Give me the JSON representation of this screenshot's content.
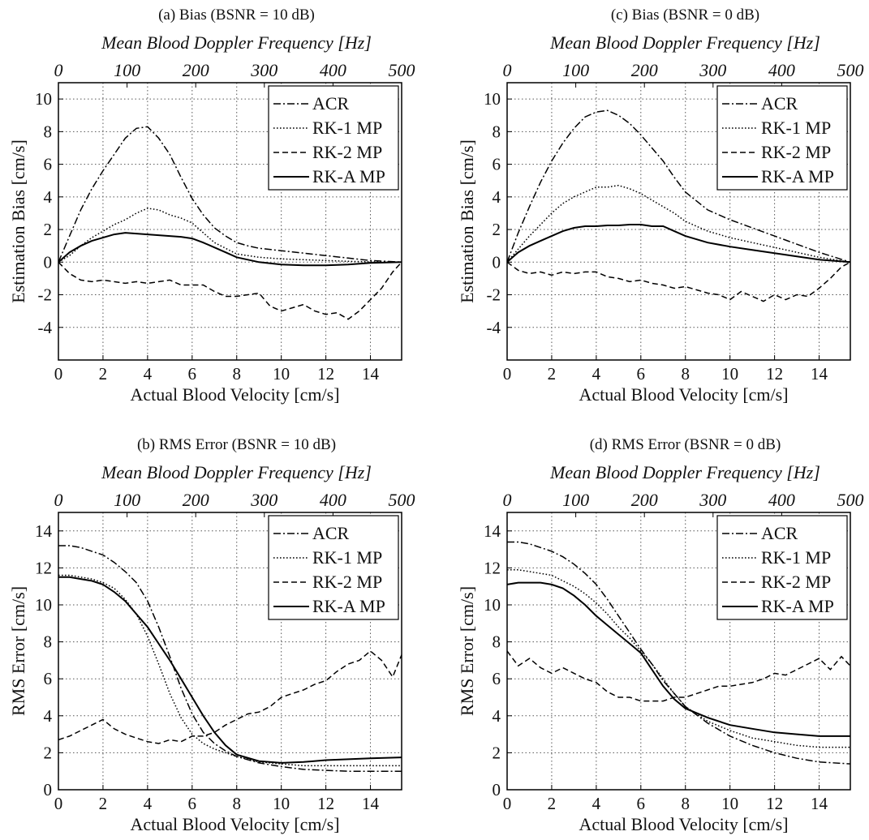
{
  "chart_data": [
    {
      "type": "line",
      "title": "(a) Bias (BSNR = 10 dB)",
      "xlabel": "Actual Blood Velocity [cm/s]",
      "ylabel": "Estimation Bias [cm/s]",
      "x2label": "Mean Blood Doppler Frequency [Hz]",
      "xlim": [
        0,
        15.4
      ],
      "ylim": [
        -6,
        11
      ],
      "x2lim": [
        0,
        500
      ],
      "xticks": [
        0,
        2,
        4,
        6,
        8,
        10,
        12,
        14
      ],
      "yticks": [
        -4,
        -2,
        0,
        2,
        4,
        6,
        8,
        10
      ],
      "x2ticks": [
        0,
        100,
        200,
        300,
        400,
        500
      ],
      "grid": true,
      "legend_position": "top-right",
      "series": [
        {
          "name": "ACR",
          "style": "dashdot",
          "x": [
            0,
            0.5,
            1,
            1.5,
            2,
            2.5,
            3,
            3.5,
            4,
            4.5,
            5,
            5.5,
            6,
            6.5,
            7,
            7.5,
            8,
            8.5,
            9,
            10,
            11,
            12,
            13,
            14,
            15.4
          ],
          "y": [
            0,
            1.6,
            3.2,
            4.5,
            5.6,
            6.6,
            7.6,
            8.2,
            8.3,
            7.6,
            6.6,
            5.2,
            3.9,
            2.9,
            2.1,
            1.6,
            1.2,
            1.0,
            0.85,
            0.7,
            0.55,
            0.4,
            0.25,
            0.1,
            0
          ]
        },
        {
          "name": "RK-1 MP",
          "style": "dotted",
          "x": [
            0,
            0.5,
            1,
            1.5,
            2,
            2.5,
            3,
            3.5,
            4,
            4.5,
            5,
            5.5,
            6,
            6.5,
            7,
            8,
            9,
            10,
            11,
            12,
            13,
            14,
            15.4
          ],
          "y": [
            0,
            0.4,
            1.0,
            1.5,
            1.9,
            2.3,
            2.6,
            3.0,
            3.3,
            3.2,
            2.9,
            2.7,
            2.4,
            1.8,
            1.2,
            0.5,
            0.3,
            0.2,
            0.15,
            0.1,
            0.05,
            0.02,
            0
          ]
        },
        {
          "name": "RK-2 MP",
          "style": "dashed",
          "x": [
            0,
            0.5,
            1,
            1.5,
            2,
            2.5,
            3,
            3.5,
            4,
            4.5,
            5,
            5.5,
            6,
            6.5,
            7,
            7.5,
            8,
            8.5,
            9,
            9.5,
            10,
            10.5,
            11,
            11.5,
            12,
            12.5,
            13,
            13.5,
            14,
            14.5,
            15,
            15.4
          ],
          "y": [
            0,
            -0.7,
            -1.1,
            -1.2,
            -1.1,
            -1.2,
            -1.3,
            -1.2,
            -1.3,
            -1.2,
            -1.1,
            -1.4,
            -1.4,
            -1.4,
            -1.8,
            -2.1,
            -2.1,
            -2.0,
            -1.9,
            -2.7,
            -3.0,
            -2.8,
            -2.6,
            -3.0,
            -3.2,
            -3.1,
            -3.5,
            -3.0,
            -2.3,
            -1.6,
            -0.6,
            0
          ]
        },
        {
          "name": "RK-A MP",
          "style": "solid",
          "x": [
            0,
            0.5,
            1,
            1.5,
            2,
            2.5,
            3,
            3.5,
            4,
            4.5,
            5,
            5.5,
            6,
            6.5,
            7,
            7.5,
            8,
            9,
            10,
            11,
            12,
            13,
            14,
            15.4
          ],
          "y": [
            0,
            0.6,
            1.0,
            1.3,
            1.5,
            1.7,
            1.8,
            1.75,
            1.7,
            1.65,
            1.6,
            1.55,
            1.45,
            1.2,
            0.9,
            0.6,
            0.3,
            0.0,
            -0.15,
            -0.2,
            -0.2,
            -0.15,
            -0.05,
            0
          ]
        }
      ]
    },
    {
      "type": "line",
      "title": "(c) Bias (BSNR = 0 dB)",
      "xlabel": "Actual Blood Velocity [cm/s]",
      "ylabel": "Estimation Bias [cm/s]",
      "x2label": "Mean Blood Doppler Frequency [Hz]",
      "xlim": [
        0,
        15.4
      ],
      "ylim": [
        -6,
        11
      ],
      "x2lim": [
        0,
        500
      ],
      "xticks": [
        0,
        2,
        4,
        6,
        8,
        10,
        12,
        14
      ],
      "yticks": [
        -4,
        -2,
        0,
        2,
        4,
        6,
        8,
        10
      ],
      "x2ticks": [
        0,
        100,
        200,
        300,
        400,
        500
      ],
      "grid": true,
      "legend_position": "top-right",
      "series": [
        {
          "name": "ACR",
          "style": "dashdot",
          "x": [
            0,
            0.5,
            1,
            1.5,
            2,
            2.5,
            3,
            3.5,
            4,
            4.5,
            5,
            5.5,
            6,
            6.5,
            7,
            7.5,
            8,
            9,
            10,
            11,
            12,
            13,
            14,
            15.4
          ],
          "y": [
            0,
            1.8,
            3.4,
            4.9,
            6.2,
            7.3,
            8.2,
            8.9,
            9.2,
            9.3,
            9.0,
            8.5,
            7.8,
            7.0,
            6.2,
            5.2,
            4.3,
            3.2,
            2.6,
            2.1,
            1.6,
            1.1,
            0.6,
            0
          ]
        },
        {
          "name": "RK-1 MP",
          "style": "dotted",
          "x": [
            0,
            0.5,
            1,
            1.5,
            2,
            2.5,
            3,
            3.5,
            4,
            4.5,
            5,
            5.5,
            6,
            6.5,
            7,
            7.5,
            8,
            9,
            10,
            11,
            12,
            13,
            14,
            15.4
          ],
          "y": [
            0,
            0.8,
            1.6,
            2.3,
            3.0,
            3.6,
            4.0,
            4.3,
            4.6,
            4.6,
            4.7,
            4.5,
            4.2,
            3.8,
            3.4,
            3.0,
            2.5,
            1.9,
            1.5,
            1.2,
            0.9,
            0.6,
            0.3,
            0
          ]
        },
        {
          "name": "RK-2 MP",
          "style": "dashed",
          "x": [
            0,
            0.5,
            1,
            1.5,
            2,
            2.5,
            3,
            3.5,
            4,
            4.5,
            5,
            5.5,
            6,
            6.5,
            7,
            7.5,
            8,
            8.5,
            9,
            9.5,
            10,
            10.5,
            11,
            11.5,
            12,
            12.5,
            13,
            13.5,
            14,
            14.5,
            15,
            15.4
          ],
          "y": [
            0,
            -0.5,
            -0.7,
            -0.6,
            -0.8,
            -0.6,
            -0.7,
            -0.6,
            -0.6,
            -0.9,
            -1.0,
            -1.2,
            -1.1,
            -1.3,
            -1.4,
            -1.6,
            -1.5,
            -1.7,
            -1.9,
            -2.0,
            -2.3,
            -1.8,
            -2.1,
            -2.4,
            -2.0,
            -2.3,
            -2.0,
            -2.1,
            -1.6,
            -1.0,
            -0.3,
            0
          ]
        },
        {
          "name": "RK-A MP",
          "style": "solid",
          "x": [
            0,
            0.5,
            1,
            1.5,
            2,
            2.5,
            3,
            3.5,
            4,
            4.5,
            5,
            5.5,
            6,
            6.5,
            7,
            7.5,
            8,
            9,
            10,
            11,
            12,
            13,
            14,
            15.4
          ],
          "y": [
            0,
            0.6,
            1.0,
            1.3,
            1.6,
            1.9,
            2.1,
            2.2,
            2.2,
            2.25,
            2.25,
            2.3,
            2.3,
            2.2,
            2.2,
            1.9,
            1.6,
            1.2,
            0.95,
            0.75,
            0.55,
            0.35,
            0.15,
            0
          ]
        }
      ]
    },
    {
      "type": "line",
      "title": "(b) RMS Error (BSNR = 10 dB)",
      "xlabel": "Actual Blood Velocity [cm/s]",
      "ylabel": "RMS Error [cm/s]",
      "x2label": "Mean Blood Doppler Frequency [Hz]",
      "xlim": [
        0,
        15.4
      ],
      "ylim": [
        0,
        15
      ],
      "x2lim": [
        0,
        500
      ],
      "xticks": [
        0,
        2,
        4,
        6,
        8,
        10,
        12,
        14
      ],
      "yticks": [
        0,
        2,
        4,
        6,
        8,
        10,
        12,
        14
      ],
      "x2ticks": [
        0,
        100,
        200,
        300,
        400,
        500
      ],
      "grid": true,
      "legend_position": "top-right",
      "series": [
        {
          "name": "ACR",
          "style": "dashdot",
          "x": [
            0,
            0.5,
            1,
            1.5,
            2,
            2.5,
            3,
            3.5,
            4,
            4.5,
            5,
            5.5,
            6,
            6.5,
            7,
            7.5,
            8,
            9,
            10,
            11,
            12,
            13,
            14,
            15.4
          ],
          "y": [
            13.2,
            13.2,
            13.1,
            12.9,
            12.7,
            12.3,
            11.8,
            11.2,
            10.2,
            8.8,
            7.2,
            5.5,
            4.1,
            3.1,
            2.5,
            2.1,
            1.8,
            1.45,
            1.25,
            1.1,
            1.05,
            1.0,
            1.0,
            1.0
          ]
        },
        {
          "name": "RK-1 MP",
          "style": "dotted",
          "x": [
            0,
            0.5,
            1,
            1.5,
            2,
            2.5,
            3,
            3.5,
            4,
            4.5,
            5,
            5.5,
            6,
            6.5,
            7,
            7.5,
            8,
            9,
            10,
            11,
            12,
            13,
            14,
            15.4
          ],
          "y": [
            11.6,
            11.6,
            11.5,
            11.4,
            11.2,
            10.9,
            10.3,
            9.5,
            8.3,
            6.8,
            5.2,
            3.9,
            3.0,
            2.5,
            2.2,
            2.0,
            1.8,
            1.5,
            1.4,
            1.3,
            1.3,
            1.3,
            1.3,
            1.3
          ]
        },
        {
          "name": "RK-2 MP",
          "style": "dashed",
          "x": [
            0,
            0.5,
            1,
            1.5,
            2,
            2.5,
            3,
            3.5,
            4,
            4.5,
            5,
            5.5,
            6,
            6.5,
            7,
            7.5,
            8,
            8.5,
            9,
            9.5,
            10,
            10.5,
            11,
            11.5,
            12,
            12.5,
            13,
            13.5,
            14,
            14.5,
            15,
            15.4
          ],
          "y": [
            2.7,
            2.9,
            3.2,
            3.5,
            3.8,
            3.3,
            3.0,
            2.8,
            2.6,
            2.5,
            2.7,
            2.6,
            2.9,
            2.9,
            3.1,
            3.5,
            3.8,
            4.1,
            4.2,
            4.5,
            5.0,
            5.2,
            5.4,
            5.7,
            5.9,
            6.4,
            6.8,
            7.0,
            7.5,
            7.0,
            6.1,
            7.3
          ]
        },
        {
          "name": "RK-A MP",
          "style": "solid",
          "x": [
            0,
            0.5,
            1,
            1.5,
            2,
            2.5,
            3,
            3.5,
            4,
            4.5,
            5,
            5.5,
            6,
            6.5,
            7,
            7.5,
            8,
            9,
            10,
            11,
            12,
            13,
            14,
            15.4
          ],
          "y": [
            11.5,
            11.5,
            11.4,
            11.3,
            11.1,
            10.7,
            10.2,
            9.5,
            8.8,
            7.9,
            7.0,
            6.0,
            5.0,
            4.0,
            3.1,
            2.4,
            1.9,
            1.55,
            1.45,
            1.5,
            1.6,
            1.65,
            1.7,
            1.75
          ]
        }
      ]
    },
    {
      "type": "line",
      "title": "(d) RMS Error (BSNR = 0 dB)",
      "xlabel": "Actual Blood Velocity [cm/s]",
      "ylabel": "RMS Error [cm/s]",
      "x2label": "Mean Blood Doppler Frequency [Hz]",
      "xlim": [
        0,
        15.4
      ],
      "ylim": [
        0,
        15
      ],
      "x2lim": [
        0,
        500
      ],
      "xticks": [
        0,
        2,
        4,
        6,
        8,
        10,
        12,
        14
      ],
      "yticks": [
        0,
        2,
        4,
        6,
        8,
        10,
        12,
        14
      ],
      "x2ticks": [
        0,
        100,
        200,
        300,
        400,
        500
      ],
      "grid": true,
      "legend_position": "top-right",
      "series": [
        {
          "name": "ACR",
          "style": "dashdot",
          "x": [
            0,
            0.5,
            1,
            1.5,
            2,
            2.5,
            3,
            3.5,
            4,
            4.5,
            5,
            5.5,
            6,
            6.5,
            7,
            7.5,
            8,
            9,
            10,
            11,
            12,
            13,
            14,
            15.4
          ],
          "y": [
            13.4,
            13.4,
            13.3,
            13.1,
            12.9,
            12.6,
            12.2,
            11.7,
            11.1,
            10.3,
            9.4,
            8.5,
            7.6,
            6.8,
            5.9,
            5.2,
            4.5,
            3.6,
            2.9,
            2.4,
            2.0,
            1.7,
            1.5,
            1.4
          ]
        },
        {
          "name": "RK-1 MP",
          "style": "dotted",
          "x": [
            0,
            0.5,
            1,
            1.5,
            2,
            2.5,
            3,
            3.5,
            4,
            4.5,
            5,
            5.5,
            6,
            6.5,
            7,
            7.5,
            8,
            9,
            10,
            11,
            12,
            13,
            14,
            15.4
          ],
          "y": [
            11.9,
            11.9,
            11.8,
            11.7,
            11.6,
            11.3,
            11.0,
            10.6,
            10.1,
            9.5,
            8.8,
            8.2,
            7.5,
            6.8,
            6.0,
            5.2,
            4.5,
            3.7,
            3.2,
            2.8,
            2.6,
            2.4,
            2.3,
            2.3
          ]
        },
        {
          "name": "RK-2 MP",
          "style": "dashed",
          "x": [
            0,
            0.5,
            1,
            1.5,
            2,
            2.5,
            3,
            3.5,
            4,
            4.5,
            5,
            5.5,
            6,
            6.5,
            7,
            7.5,
            8,
            8.5,
            9,
            9.5,
            10,
            10.5,
            11,
            11.5,
            12,
            12.5,
            13,
            13.5,
            14,
            14.5,
            15,
            15.4
          ],
          "y": [
            7.5,
            6.7,
            7.1,
            6.6,
            6.3,
            6.6,
            6.3,
            6.0,
            5.8,
            5.3,
            5.0,
            5.0,
            4.8,
            4.8,
            4.8,
            5.0,
            5.0,
            5.2,
            5.4,
            5.6,
            5.6,
            5.7,
            5.8,
            6.0,
            6.3,
            6.2,
            6.5,
            6.8,
            7.1,
            6.5,
            7.2,
            6.7
          ]
        },
        {
          "name": "RK-A MP",
          "style": "solid",
          "x": [
            0,
            0.5,
            1,
            1.5,
            2,
            2.5,
            3,
            3.5,
            4,
            4.5,
            5,
            5.5,
            6,
            6.5,
            7,
            7.5,
            8,
            9,
            10,
            11,
            12,
            13,
            14,
            15.4
          ],
          "y": [
            11.1,
            11.2,
            11.2,
            11.2,
            11.1,
            10.9,
            10.5,
            10.0,
            9.4,
            8.9,
            8.4,
            7.9,
            7.4,
            6.5,
            5.6,
            4.9,
            4.4,
            3.9,
            3.5,
            3.3,
            3.1,
            3.0,
            2.9,
            2.9
          ]
        }
      ]
    }
  ]
}
